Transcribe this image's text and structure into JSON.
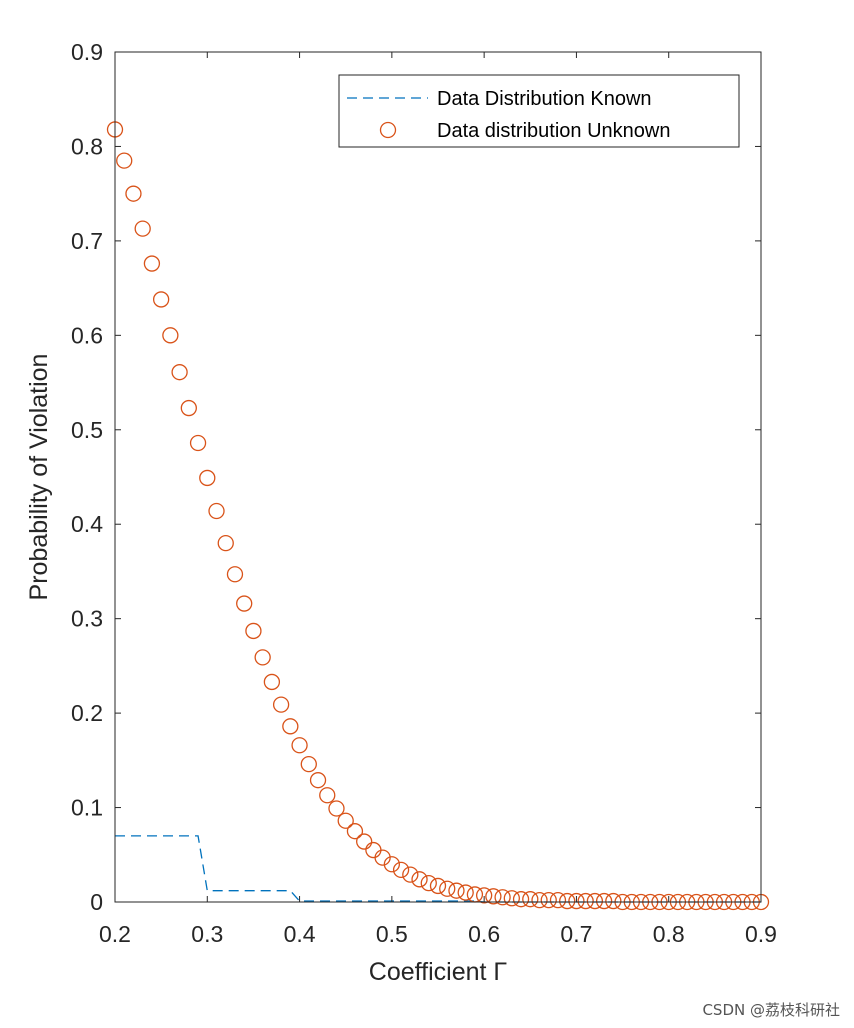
{
  "chart_data": {
    "type": "line",
    "xlabel": "Coefficient Γ",
    "ylabel": "Probability of Violation",
    "xlim": [
      0.2,
      0.9
    ],
    "ylim": [
      0,
      0.9
    ],
    "x_ticks": [
      0.2,
      0.3,
      0.4,
      0.5,
      0.6,
      0.7,
      0.8,
      0.9
    ],
    "y_ticks": [
      0,
      0.1,
      0.2,
      0.3,
      0.4,
      0.5,
      0.6,
      0.7,
      0.8,
      0.9
    ],
    "grid": false,
    "legend_position": "top-right",
    "series": [
      {
        "name": "Data Distribution Known",
        "style": "dashed-line",
        "color": "#0072BD",
        "x": [
          0.2,
          0.29,
          0.3,
          0.39,
          0.4,
          0.59,
          0.6,
          0.9
        ],
        "y": [
          0.07,
          0.07,
          0.012,
          0.012,
          0.001,
          0.001,
          0,
          0
        ]
      },
      {
        "name": "Data distribution Unknown",
        "style": "circle-markers",
        "color": "#D95319",
        "x": [
          0.2,
          0.21,
          0.22,
          0.23,
          0.24,
          0.25,
          0.26,
          0.27,
          0.28,
          0.29,
          0.3,
          0.31,
          0.32,
          0.33,
          0.34,
          0.35,
          0.36,
          0.37,
          0.38,
          0.39,
          0.4,
          0.41,
          0.42,
          0.43,
          0.44,
          0.45,
          0.46,
          0.47,
          0.48,
          0.49,
          0.5,
          0.51,
          0.52,
          0.53,
          0.54,
          0.55,
          0.56,
          0.57,
          0.58,
          0.59,
          0.6,
          0.61,
          0.62,
          0.63,
          0.64,
          0.65,
          0.66,
          0.67,
          0.68,
          0.69,
          0.7,
          0.71,
          0.72,
          0.73,
          0.74,
          0.75,
          0.76,
          0.77,
          0.78,
          0.79,
          0.8,
          0.81,
          0.82,
          0.83,
          0.84,
          0.85,
          0.86,
          0.87,
          0.88,
          0.89,
          0.9
        ],
        "y": [
          0.818,
          0.785,
          0.75,
          0.713,
          0.676,
          0.638,
          0.6,
          0.561,
          0.523,
          0.486,
          0.449,
          0.414,
          0.38,
          0.347,
          0.316,
          0.287,
          0.259,
          0.233,
          0.209,
          0.186,
          0.166,
          0.146,
          0.129,
          0.113,
          0.099,
          0.086,
          0.075,
          0.064,
          0.055,
          0.047,
          0.04,
          0.034,
          0.029,
          0.024,
          0.02,
          0.017,
          0.014,
          0.012,
          0.01,
          0.008,
          0.007,
          0.006,
          0.005,
          0.004,
          0.003,
          0.003,
          0.002,
          0.002,
          0.002,
          0.001,
          0.001,
          0.001,
          0.001,
          0.001,
          0.001,
          0,
          0,
          0,
          0,
          0,
          0,
          0,
          0,
          0,
          0,
          0,
          0,
          0,
          0,
          0,
          0
        ]
      }
    ]
  },
  "watermark": "CSDN @荔枝科研社"
}
